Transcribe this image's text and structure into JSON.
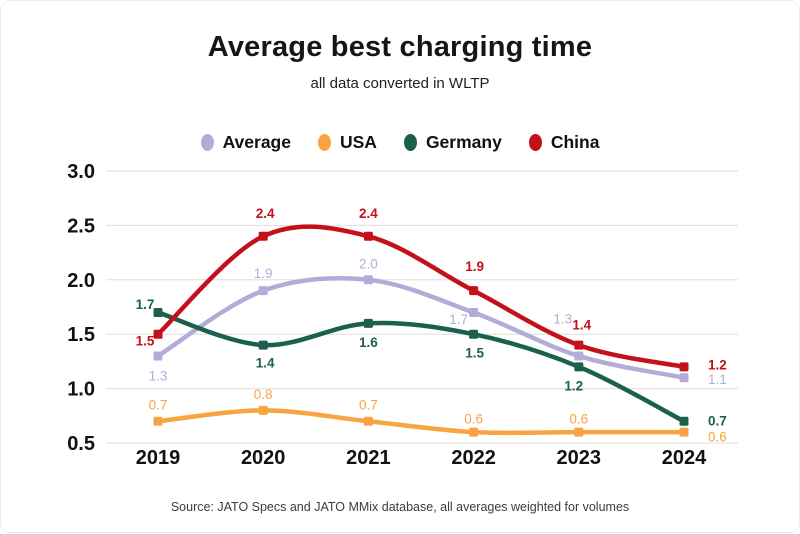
{
  "title": "Average best charging time",
  "subtitle": "all data converted in WLTP",
  "footer": "Source: JATO Specs and JATO MMix database, all averages weighted for volumes",
  "colors": {
    "average": "#b3acd8",
    "usa": "#f8a441",
    "germany": "#1b604f",
    "china": "#c4101a",
    "grid": "#dedede",
    "axis_text": "#111111"
  },
  "chart_data": {
    "type": "line",
    "title": "Average best charging time",
    "subtitle": "all data converted in WLTP",
    "categories": [
      "2019",
      "2020",
      "2021",
      "2022",
      "2023",
      "2024"
    ],
    "xlabel": "",
    "ylabel": "",
    "ylim": [
      0.5,
      3.0
    ],
    "yticks": [
      3.0,
      2.5,
      2.0,
      1.5,
      1.0,
      0.5
    ],
    "grid": true,
    "legend_position": "top",
    "line_style": "smooth",
    "marker": "square",
    "series": [
      {
        "name": "Average",
        "color": "#b3acd8",
        "values": [
          1.3,
          1.9,
          2.0,
          1.7,
          1.3,
          1.1
        ]
      },
      {
        "name": "USA",
        "color": "#f8a441",
        "values": [
          0.7,
          0.8,
          0.7,
          0.6,
          0.6,
          0.6
        ]
      },
      {
        "name": "Germany",
        "color": "#1b604f",
        "values": [
          1.7,
          1.4,
          1.6,
          1.5,
          1.2,
          0.7
        ]
      },
      {
        "name": "China",
        "color": "#c4101a",
        "values": [
          1.5,
          2.4,
          2.4,
          1.9,
          1.4,
          1.2
        ]
      }
    ]
  }
}
